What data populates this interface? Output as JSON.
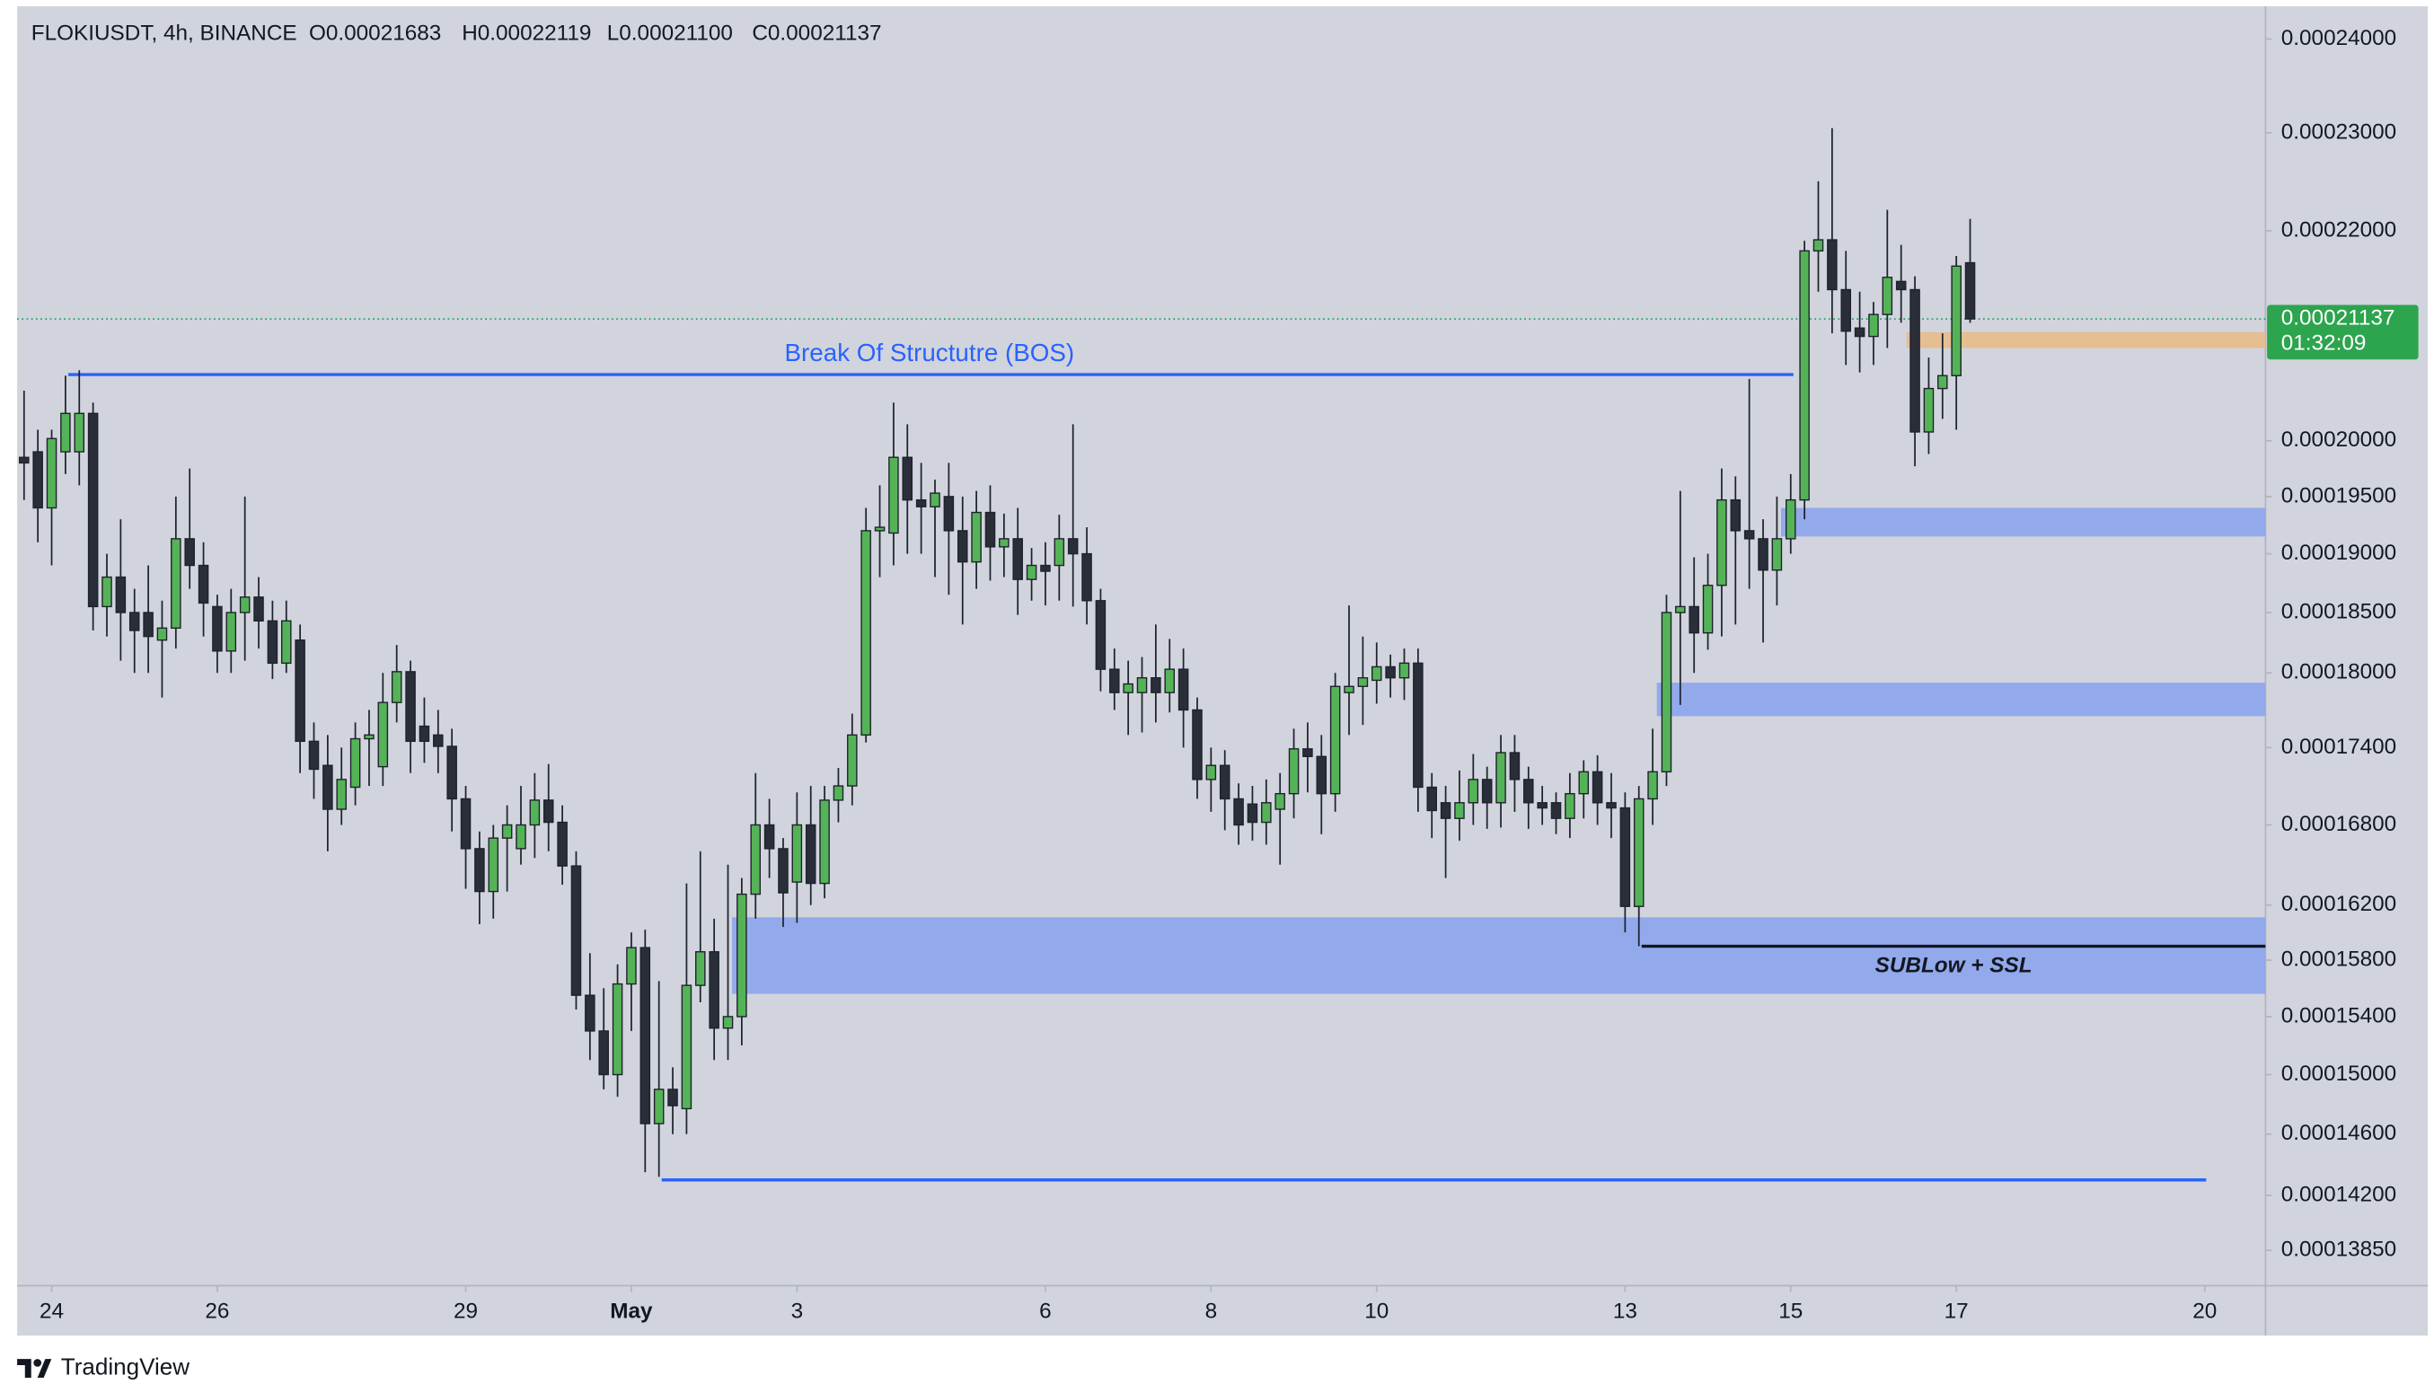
{
  "header": {
    "symbol": "FLOKIUSDT, 4h, BINANCE",
    "ohlc": [
      "O0.00021683",
      "H0.00022119",
      "L0.00021100",
      "C0.00021137"
    ]
  },
  "footer": {
    "brand": "TradingView"
  },
  "chart_data": {
    "type": "candlestick",
    "log_scale": true,
    "up_color": "#55b357",
    "down_color": "#2a2e39",
    "ylim": [
      0.0001363,
      0.0002436
    ],
    "xlim": [
      -0.5,
      162.4
    ],
    "yticks": [
      {
        "value": 0.00024,
        "label": "0.00024000"
      },
      {
        "value": 0.00023,
        "label": "0.00023000"
      },
      {
        "value": 0.00022,
        "label": "0.00022000"
      },
      {
        "value": 0.0002,
        "label": "0.00020000"
      },
      {
        "value": 0.000195,
        "label": "0.00019500"
      },
      {
        "value": 0.00019,
        "label": "0.00019000"
      },
      {
        "value": 0.000185,
        "label": "0.00018500"
      },
      {
        "value": 0.00018,
        "label": "0.00018000"
      },
      {
        "value": 0.000174,
        "label": "0.00017400"
      },
      {
        "value": 0.000168,
        "label": "0.00016800"
      },
      {
        "value": 0.000162,
        "label": "0.00016200"
      },
      {
        "value": 0.000158,
        "label": "0.00015800"
      },
      {
        "value": 0.000154,
        "label": "0.00015400"
      },
      {
        "value": 0.00015,
        "label": "0.00015000"
      },
      {
        "value": 0.000146,
        "label": "0.00014600"
      },
      {
        "value": 0.000142,
        "label": "0.00014200"
      },
      {
        "value": 0.0001385,
        "label": "0.00013850"
      }
    ],
    "xticks": [
      {
        "value": 2,
        "label": "24"
      },
      {
        "value": 14,
        "label": "26"
      },
      {
        "value": 32,
        "label": "29"
      },
      {
        "value": 44,
        "label": "May"
      },
      {
        "value": 56,
        "label": "3"
      },
      {
        "value": 74,
        "label": "6"
      },
      {
        "value": 86,
        "label": "8"
      },
      {
        "value": 98,
        "label": "10"
      },
      {
        "value": 116,
        "label": "13"
      },
      {
        "value": 128,
        "label": "15"
      },
      {
        "value": 140,
        "label": "17"
      },
      {
        "value": 158,
        "label": "20"
      }
    ],
    "last_price": {
      "value": 0.00021137,
      "label": "0.00021137"
    },
    "countdown": "01:32:09",
    "zones": [
      {
        "x0": 51.3,
        "top": 0.0001611,
        "bottom": 0.0001556,
        "color": "#8ea6ec"
      },
      {
        "x0": 118.3,
        "top": 0.0001792,
        "bottom": 0.0001765,
        "color": "#8ea6ec"
      },
      {
        "x0": 127.3,
        "top": 0.000194,
        "bottom": 0.0001915,
        "color": "#8ea6ec"
      },
      {
        "x0": 136.4,
        "top": 0.0002101,
        "bottom": 0.0002086,
        "color": "#e6bd8c"
      }
    ],
    "lines": [
      {
        "x0": 3.2,
        "x1": 128.2,
        "value": 0.0002061,
        "color": "#2962ff",
        "label": "Break Of Structutre (BOS)",
        "label_x": 65.6,
        "label_position": "above"
      },
      {
        "x0": 46.2,
        "x1": 158.1,
        "value": 0.000143,
        "color": "#2962ff"
      },
      {
        "x0": 117.2,
        "x1": 162.4,
        "value": 0.000159,
        "color": "#131722",
        "label": "SUBLow + SSL",
        "label_x": 139.8,
        "label_position": "below"
      }
    ],
    "candles": [
      [
        0.0001985,
        0.0002046,
        0.0001947,
        0.000198
      ],
      [
        0.000199,
        0.000201,
        0.000191,
        0.000194
      ],
      [
        0.000194,
        0.000201,
        0.000189,
        0.0002002
      ],
      [
        0.000199,
        0.000206,
        0.000197,
        0.0002025
      ],
      [
        0.000199,
        0.0002065,
        0.000196,
        0.0002025
      ],
      [
        0.0002025,
        0.0002035,
        0.0001835,
        0.0001855
      ],
      [
        0.0001855,
        0.00019,
        0.000183,
        0.000188
      ],
      [
        0.000188,
        0.000193,
        0.000181,
        0.000185
      ],
      [
        0.000185,
        0.000187,
        0.00018,
        0.0001835
      ],
      [
        0.000185,
        0.000189,
        0.00018,
        0.000183
      ],
      [
        0.0001827,
        0.000186,
        0.000178,
        0.0001837
      ],
      [
        0.0001837,
        0.000195,
        0.000182,
        0.0001913
      ],
      [
        0.0001913,
        0.0001975,
        0.000187,
        0.000189
      ],
      [
        0.000189,
        0.000191,
        0.000183,
        0.0001858
      ],
      [
        0.0001855,
        0.0001865,
        0.00018,
        0.0001818
      ],
      [
        0.0001818,
        0.000187,
        0.00018,
        0.000185
      ],
      [
        0.000185,
        0.000195,
        0.000181,
        0.0001863
      ],
      [
        0.0001863,
        0.000188,
        0.000182,
        0.0001843
      ],
      [
        0.0001843,
        0.000186,
        0.0001795,
        0.0001808
      ],
      [
        0.0001808,
        0.000186,
        0.00018,
        0.0001843
      ],
      [
        0.0001827,
        0.000184,
        0.000172,
        0.0001745
      ],
      [
        0.0001745,
        0.000176,
        0.00017,
        0.0001723
      ],
      [
        0.0001726,
        0.000175,
        0.000166,
        0.0001692
      ],
      [
        0.0001692,
        0.000174,
        0.000168,
        0.0001715
      ],
      [
        0.0001709,
        0.000176,
        0.0001695,
        0.0001747
      ],
      [
        0.0001747,
        0.000177,
        0.000171,
        0.000175
      ],
      [
        0.0001725,
        0.00018,
        0.000171,
        0.0001776
      ],
      [
        0.0001776,
        0.0001823,
        0.000176,
        0.0001801
      ],
      [
        0.0001801,
        0.000181,
        0.000172,
        0.0001745
      ],
      [
        0.0001757,
        0.000178,
        0.0001728,
        0.0001745
      ],
      [
        0.000175,
        0.000177,
        0.000172,
        0.0001741
      ],
      [
        0.0001741,
        0.0001755,
        0.0001675,
        0.00017
      ],
      [
        0.00017,
        0.000171,
        0.0001632,
        0.0001662
      ],
      [
        0.0001662,
        0.0001675,
        0.0001606,
        0.000163
      ],
      [
        0.000163,
        0.000168,
        0.000161,
        0.000167
      ],
      [
        0.000167,
        0.0001695,
        0.000163,
        0.000168
      ],
      [
        0.0001662,
        0.000171,
        0.000165,
        0.000168
      ],
      [
        0.000168,
        0.000172,
        0.0001655,
        0.0001699
      ],
      [
        0.0001699,
        0.0001727,
        0.000166,
        0.0001682
      ],
      [
        0.0001682,
        0.0001695,
        0.0001635,
        0.0001649
      ],
      [
        0.0001649,
        0.000166,
        0.0001545,
        0.0001555
      ],
      [
        0.0001555,
        0.0001585,
        0.000151,
        0.000153
      ],
      [
        0.000153,
        0.000156,
        0.000149,
        0.00015
      ],
      [
        0.00015,
        0.0001577,
        0.0001485,
        0.0001563
      ],
      [
        0.0001563,
        0.00016,
        0.000153,
        0.0001589
      ],
      [
        0.0001589,
        0.0001602,
        0.0001435,
        0.0001467
      ],
      [
        0.0001467,
        0.0001565,
        0.0001432,
        0.000149
      ],
      [
        0.000149,
        0.0001505,
        0.000146,
        0.0001479
      ],
      [
        0.0001477,
        0.0001636,
        0.000146,
        0.0001562
      ],
      [
        0.0001562,
        0.000166,
        0.000155,
        0.0001586
      ],
      [
        0.0001586,
        0.000161,
        0.000151,
        0.0001532
      ],
      [
        0.0001532,
        0.000165,
        0.000151,
        0.000154
      ],
      [
        0.000154,
        0.000164,
        0.000152,
        0.0001628
      ],
      [
        0.0001628,
        0.000172,
        0.000161,
        0.000168
      ],
      [
        0.000168,
        0.00017,
        0.000164,
        0.0001662
      ],
      [
        0.0001662,
        0.000167,
        0.0001604,
        0.0001629
      ],
      [
        0.0001637,
        0.0001705,
        0.0001607,
        0.000168
      ],
      [
        0.000168,
        0.000171,
        0.000162,
        0.0001636
      ],
      [
        0.0001636,
        0.000171,
        0.0001625,
        0.0001699
      ],
      [
        0.0001699,
        0.0001724,
        0.0001682,
        0.000171
      ],
      [
        0.000171,
        0.0001767,
        0.0001695,
        0.000175
      ],
      [
        0.000175,
        0.000194,
        0.0001744,
        0.000192
      ],
      [
        0.000192,
        0.000196,
        0.000188,
        0.0001923
      ],
      [
        0.0001918,
        0.0002035,
        0.000189,
        0.0001985
      ],
      [
        0.0001985,
        0.0002015,
        0.00019,
        0.0001947
      ],
      [
        0.0001947,
        0.000198,
        0.00019,
        0.0001941
      ],
      [
        0.0001941,
        0.0001965,
        0.000188,
        0.0001953
      ],
      [
        0.000195,
        0.000198,
        0.0001865,
        0.000192
      ],
      [
        0.000192,
        0.000195,
        0.000184,
        0.0001893
      ],
      [
        0.0001893,
        0.0001955,
        0.000187,
        0.0001936
      ],
      [
        0.0001936,
        0.000196,
        0.0001877,
        0.0001906
      ],
      [
        0.0001906,
        0.0001935,
        0.000188,
        0.0001913
      ],
      [
        0.0001913,
        0.000194,
        0.0001848,
        0.0001878
      ],
      [
        0.0001878,
        0.0001905,
        0.000186,
        0.000189
      ],
      [
        0.000189,
        0.000191,
        0.0001856,
        0.0001885
      ],
      [
        0.000189,
        0.0001934,
        0.000186,
        0.0001913
      ],
      [
        0.0001913,
        0.0002015,
        0.0001855,
        0.00019
      ],
      [
        0.00019,
        0.0001923,
        0.000184,
        0.000186
      ],
      [
        0.000186,
        0.000187,
        0.0001785,
        0.0001803
      ],
      [
        0.0001803,
        0.000182,
        0.000177,
        0.0001784
      ],
      [
        0.0001784,
        0.000181,
        0.000175,
        0.0001791
      ],
      [
        0.0001784,
        0.0001813,
        0.0001752,
        0.0001796
      ],
      [
        0.0001796,
        0.000184,
        0.000176,
        0.0001784
      ],
      [
        0.0001784,
        0.0001828,
        0.0001768,
        0.0001803
      ],
      [
        0.0001803,
        0.000182,
        0.000174,
        0.000177
      ],
      [
        0.000177,
        0.000178,
        0.00017,
        0.0001715
      ],
      [
        0.0001715,
        0.000174,
        0.000169,
        0.0001726
      ],
      [
        0.0001726,
        0.0001738,
        0.0001676,
        0.00017
      ],
      [
        0.00017,
        0.0001712,
        0.0001665,
        0.000168
      ],
      [
        0.0001696,
        0.000171,
        0.0001668,
        0.0001682
      ],
      [
        0.0001682,
        0.0001715,
        0.0001665,
        0.0001697
      ],
      [
        0.0001692,
        0.000172,
        0.000165,
        0.0001704
      ],
      [
        0.0001704,
        0.0001755,
        0.0001685,
        0.0001739
      ],
      [
        0.0001739,
        0.000176,
        0.0001705,
        0.0001733
      ],
      [
        0.0001733,
        0.000175,
        0.0001673,
        0.0001704
      ],
      [
        0.0001704,
        0.00018,
        0.000169,
        0.0001789
      ],
      [
        0.0001784,
        0.0001856,
        0.000175,
        0.0001789
      ],
      [
        0.0001789,
        0.000183,
        0.0001758,
        0.0001796
      ],
      [
        0.0001794,
        0.0001825,
        0.0001775,
        0.0001805
      ],
      [
        0.0001805,
        0.0001815,
        0.000178,
        0.0001796
      ],
      [
        0.0001796,
        0.000182,
        0.0001778,
        0.0001808
      ],
      [
        0.0001808,
        0.000182,
        0.000169,
        0.0001709
      ],
      [
        0.0001709,
        0.000172,
        0.000167,
        0.0001691
      ],
      [
        0.0001697,
        0.000171,
        0.000164,
        0.0001685
      ],
      [
        0.0001685,
        0.0001722,
        0.0001668,
        0.0001697
      ],
      [
        0.0001697,
        0.0001735,
        0.000168,
        0.0001715
      ],
      [
        0.0001715,
        0.0001725,
        0.0001677,
        0.0001697
      ],
      [
        0.0001697,
        0.000175,
        0.0001678,
        0.0001736
      ],
      [
        0.0001736,
        0.000175,
        0.000169,
        0.0001715
      ],
      [
        0.0001715,
        0.0001725,
        0.0001677,
        0.0001697
      ],
      [
        0.0001697,
        0.000171,
        0.000168,
        0.0001693
      ],
      [
        0.0001697,
        0.0001705,
        0.0001673,
        0.0001685
      ],
      [
        0.0001685,
        0.000172,
        0.000167,
        0.0001704
      ],
      [
        0.0001704,
        0.000173,
        0.0001685,
        0.0001721
      ],
      [
        0.0001721,
        0.0001734,
        0.000168,
        0.0001697
      ],
      [
        0.0001697,
        0.000172,
        0.000167,
        0.0001693
      ],
      [
        0.0001693,
        0.0001705,
        0.00016,
        0.0001619
      ],
      [
        0.0001619,
        0.000171,
        0.000159,
        0.00017
      ],
      [
        0.00017,
        0.0001755,
        0.000168,
        0.0001721
      ],
      [
        0.0001721,
        0.0001865,
        0.000171,
        0.000185
      ],
      [
        0.000185,
        0.0001955,
        0.0001774,
        0.0001855
      ],
      [
        0.0001855,
        0.0001897,
        0.00018,
        0.0001833
      ],
      [
        0.0001833,
        0.00019,
        0.0001819,
        0.0001873
      ],
      [
        0.0001873,
        0.0001975,
        0.000183,
        0.0001947
      ],
      [
        0.0001947,
        0.0001968,
        0.000184,
        0.000192
      ],
      [
        0.000192,
        0.0002057,
        0.000187,
        0.0001913
      ],
      [
        0.0001913,
        0.000193,
        0.0001825,
        0.0001886
      ],
      [
        0.0001886,
        0.000195,
        0.0001856,
        0.0001913
      ],
      [
        0.0001913,
        0.000197,
        0.00019,
        0.0001947
      ],
      [
        0.0001947,
        0.000219,
        0.000193,
        0.000218
      ],
      [
        0.000218,
        0.000225,
        0.000214,
        0.0002191
      ],
      [
        0.0002191,
        0.0002305,
        0.00021,
        0.0002142
      ],
      [
        0.0002142,
        0.000218,
        0.000207,
        0.0002102
      ],
      [
        0.0002105,
        0.000214,
        0.0002063,
        0.0002097
      ],
      [
        0.0002097,
        0.000213,
        0.000207,
        0.0002118
      ],
      [
        0.0002118,
        0.0002221,
        0.0002086,
        0.0002154
      ],
      [
        0.000215,
        0.0002186,
        0.000211,
        0.0002142
      ],
      [
        0.0002142,
        0.0002155,
        0.0001977,
        0.0002008
      ],
      [
        0.0002008,
        0.0002077,
        0.0001988,
        0.0002048
      ],
      [
        0.0002048,
        0.00021,
        0.000202,
        0.000206
      ],
      [
        0.000206,
        0.0002175,
        0.000201,
        0.0002165
      ],
      [
        0.00021683,
        0.00022119,
        0.000211,
        0.00021137
      ]
    ]
  }
}
